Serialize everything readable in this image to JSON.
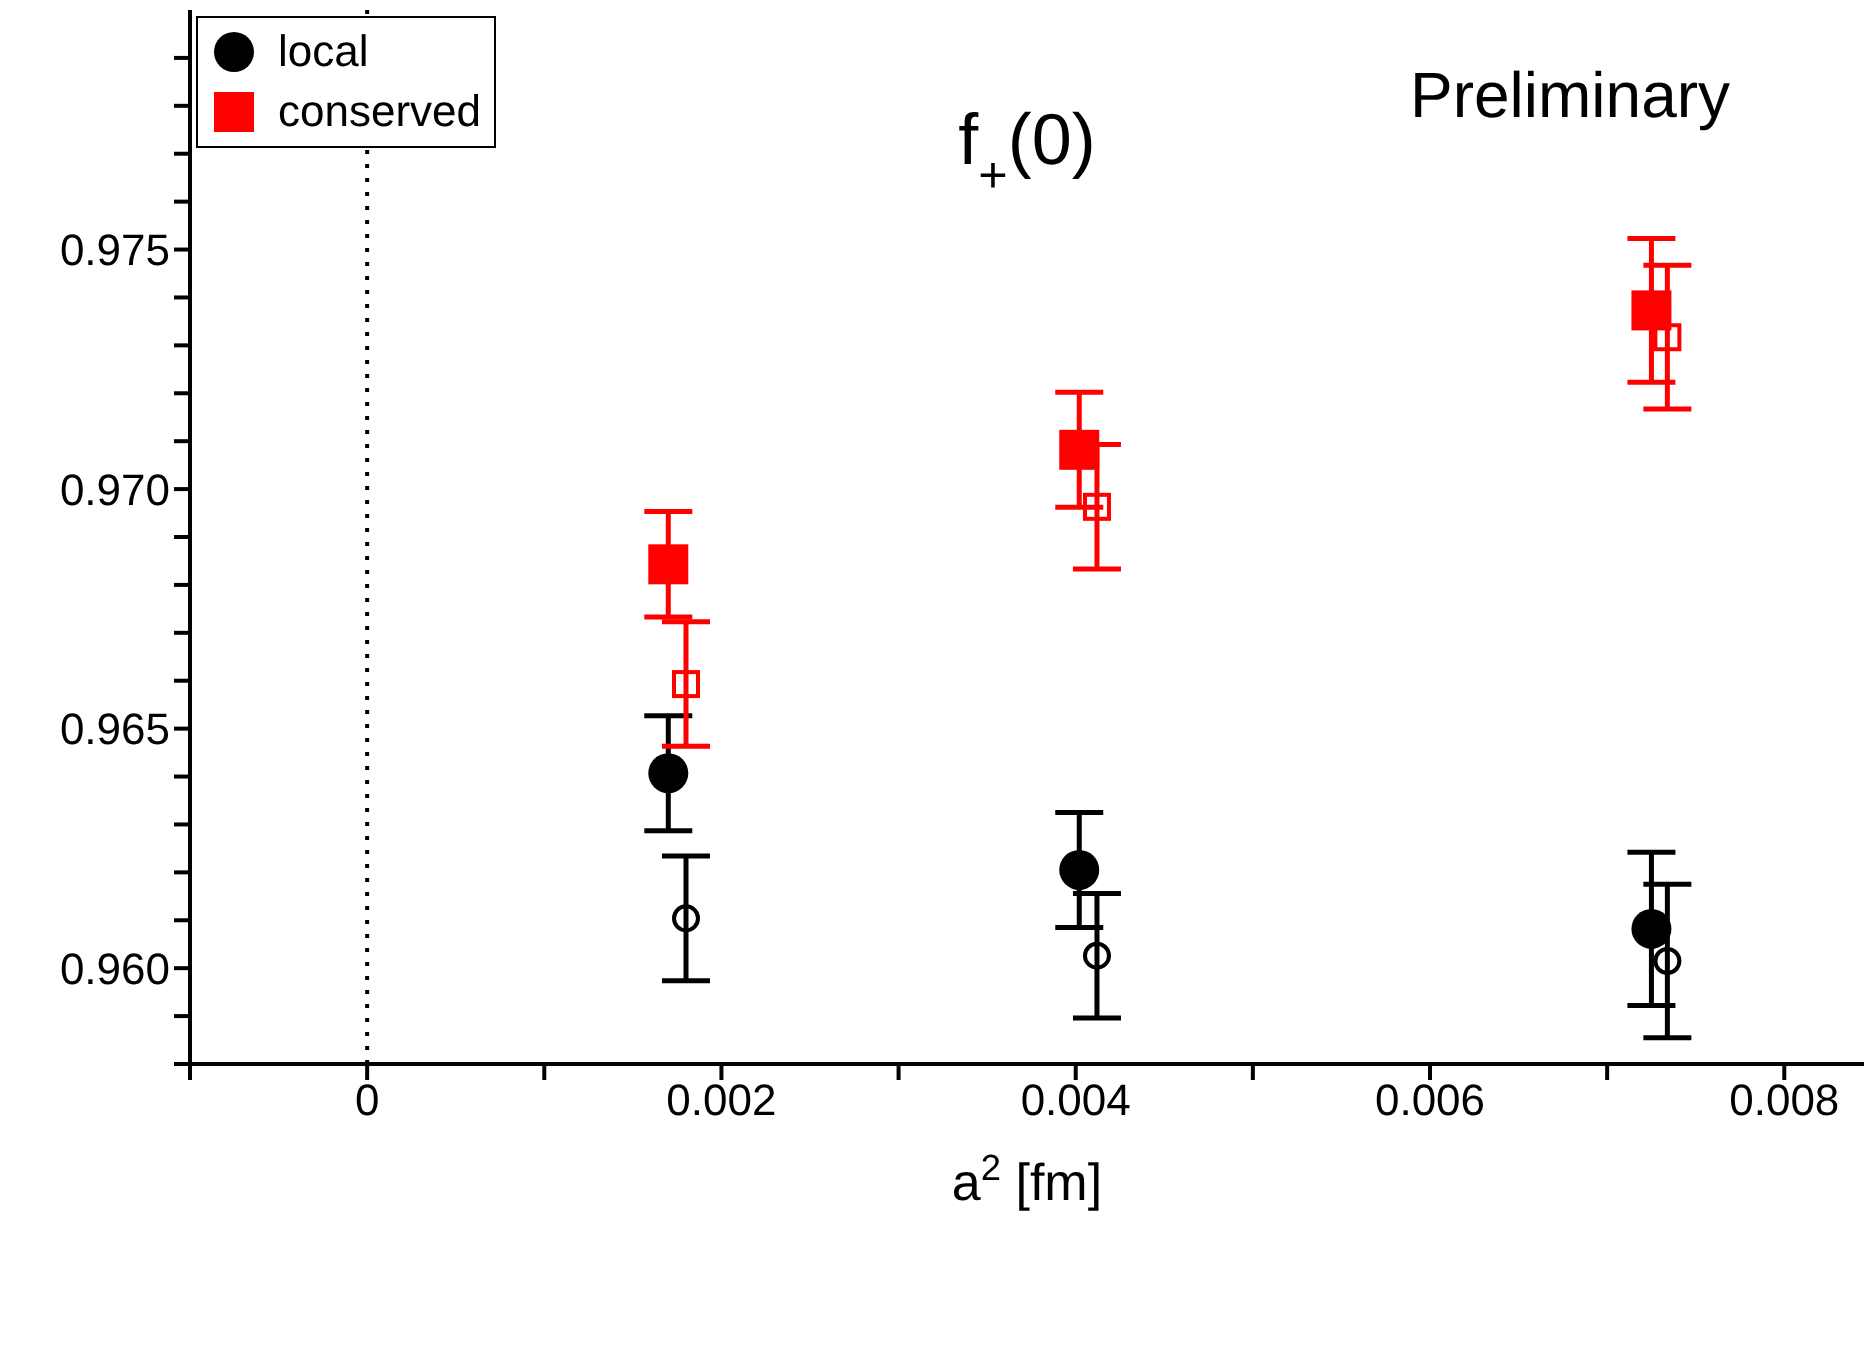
{
  "chart_data": {
    "type": "scatter",
    "xlabel": "a$^{2}$ [fm]",
    "annotations": [
      "f$_{+}$(0)",
      "Preliminary"
    ],
    "series": [
      {
        "name": "local",
        "color": "#000000",
        "marker": "circle",
        "x": [
          0.0017,
          0.00402,
          0.00725
        ],
        "values": [
          0.96407,
          0.96205,
          0.96082
        ],
        "errors": [
          0.0012,
          0.0012,
          0.0016
        ]
      },
      {
        "name": "conserved",
        "color": "#ff0000",
        "marker": "square",
        "x": [
          0.0017,
          0.00402,
          0.00725
        ],
        "values": [
          0.96843,
          0.97082,
          0.97373
        ],
        "errors": [
          0.0011,
          0.0012,
          0.0015
        ]
      },
      {
        "color": "#000000",
        "marker": "circle",
        "x": [
          0.0018,
          0.00412,
          0.00734
        ],
        "values": [
          0.96104,
          0.96026,
          0.96015
        ],
        "errors": [
          0.0013,
          0.0013,
          0.0016
        ]
      },
      {
        "color": "#ff0000",
        "marker": "square",
        "x": [
          0.0018,
          0.00412,
          0.00734
        ],
        "values": [
          0.96593,
          0.96963,
          0.97317
        ],
        "errors": [
          0.0013,
          0.0013,
          0.0015
        ]
      }
    ],
    "xlim": [
      -0.001,
      0.00845
    ],
    "xticks": [
      {
        "value": -0.001,
        "label": null
      },
      0,
      {
        "value": 0.001,
        "label": null
      },
      0.002,
      {
        "value": 0.003,
        "label": null
      },
      0.004,
      {
        "value": 0.005,
        "label": null
      },
      0.006,
      {
        "value": 0.007,
        "label": null
      },
      0.008
    ],
    "ylim": [
      0.958,
      0.98
    ],
    "yticks": [
      {
        "value": 0.958,
        "label": null
      },
      {
        "value": 0.959,
        "label": null
      },
      {
        "value": 0.96,
        "label": "0.960"
      },
      {
        "value": 0.961,
        "label": null
      },
      {
        "value": 0.962,
        "label": null
      },
      {
        "value": 0.963,
        "label": null
      },
      {
        "value": 0.964,
        "label": null
      },
      0.965,
      {
        "value": 0.966,
        "label": null
      },
      {
        "value": 0.967,
        "label": null
      },
      {
        "value": 0.968,
        "label": null
      },
      {
        "value": 0.969,
        "label": null
      },
      {
        "value": 0.97,
        "label": "0.970"
      },
      {
        "value": 0.971,
        "label": null
      },
      {
        "value": 0.972,
        "label": null
      },
      {
        "value": 0.973,
        "label": null
      },
      {
        "value": 0.974,
        "label": null
      },
      0.975,
      {
        "value": 0.976,
        "label": null
      },
      {
        "value": 0.977,
        "label": null
      },
      {
        "value": 0.978,
        "label": null
      },
      {
        "value": 0.979,
        "label": null
      }
    ],
    "ref_lines": [
      {
        "axis": "x",
        "value": 0,
        "line_style": "dotted",
        "color": "#000000"
      }
    ],
    "legend": "top left",
    "grid": false
  }
}
